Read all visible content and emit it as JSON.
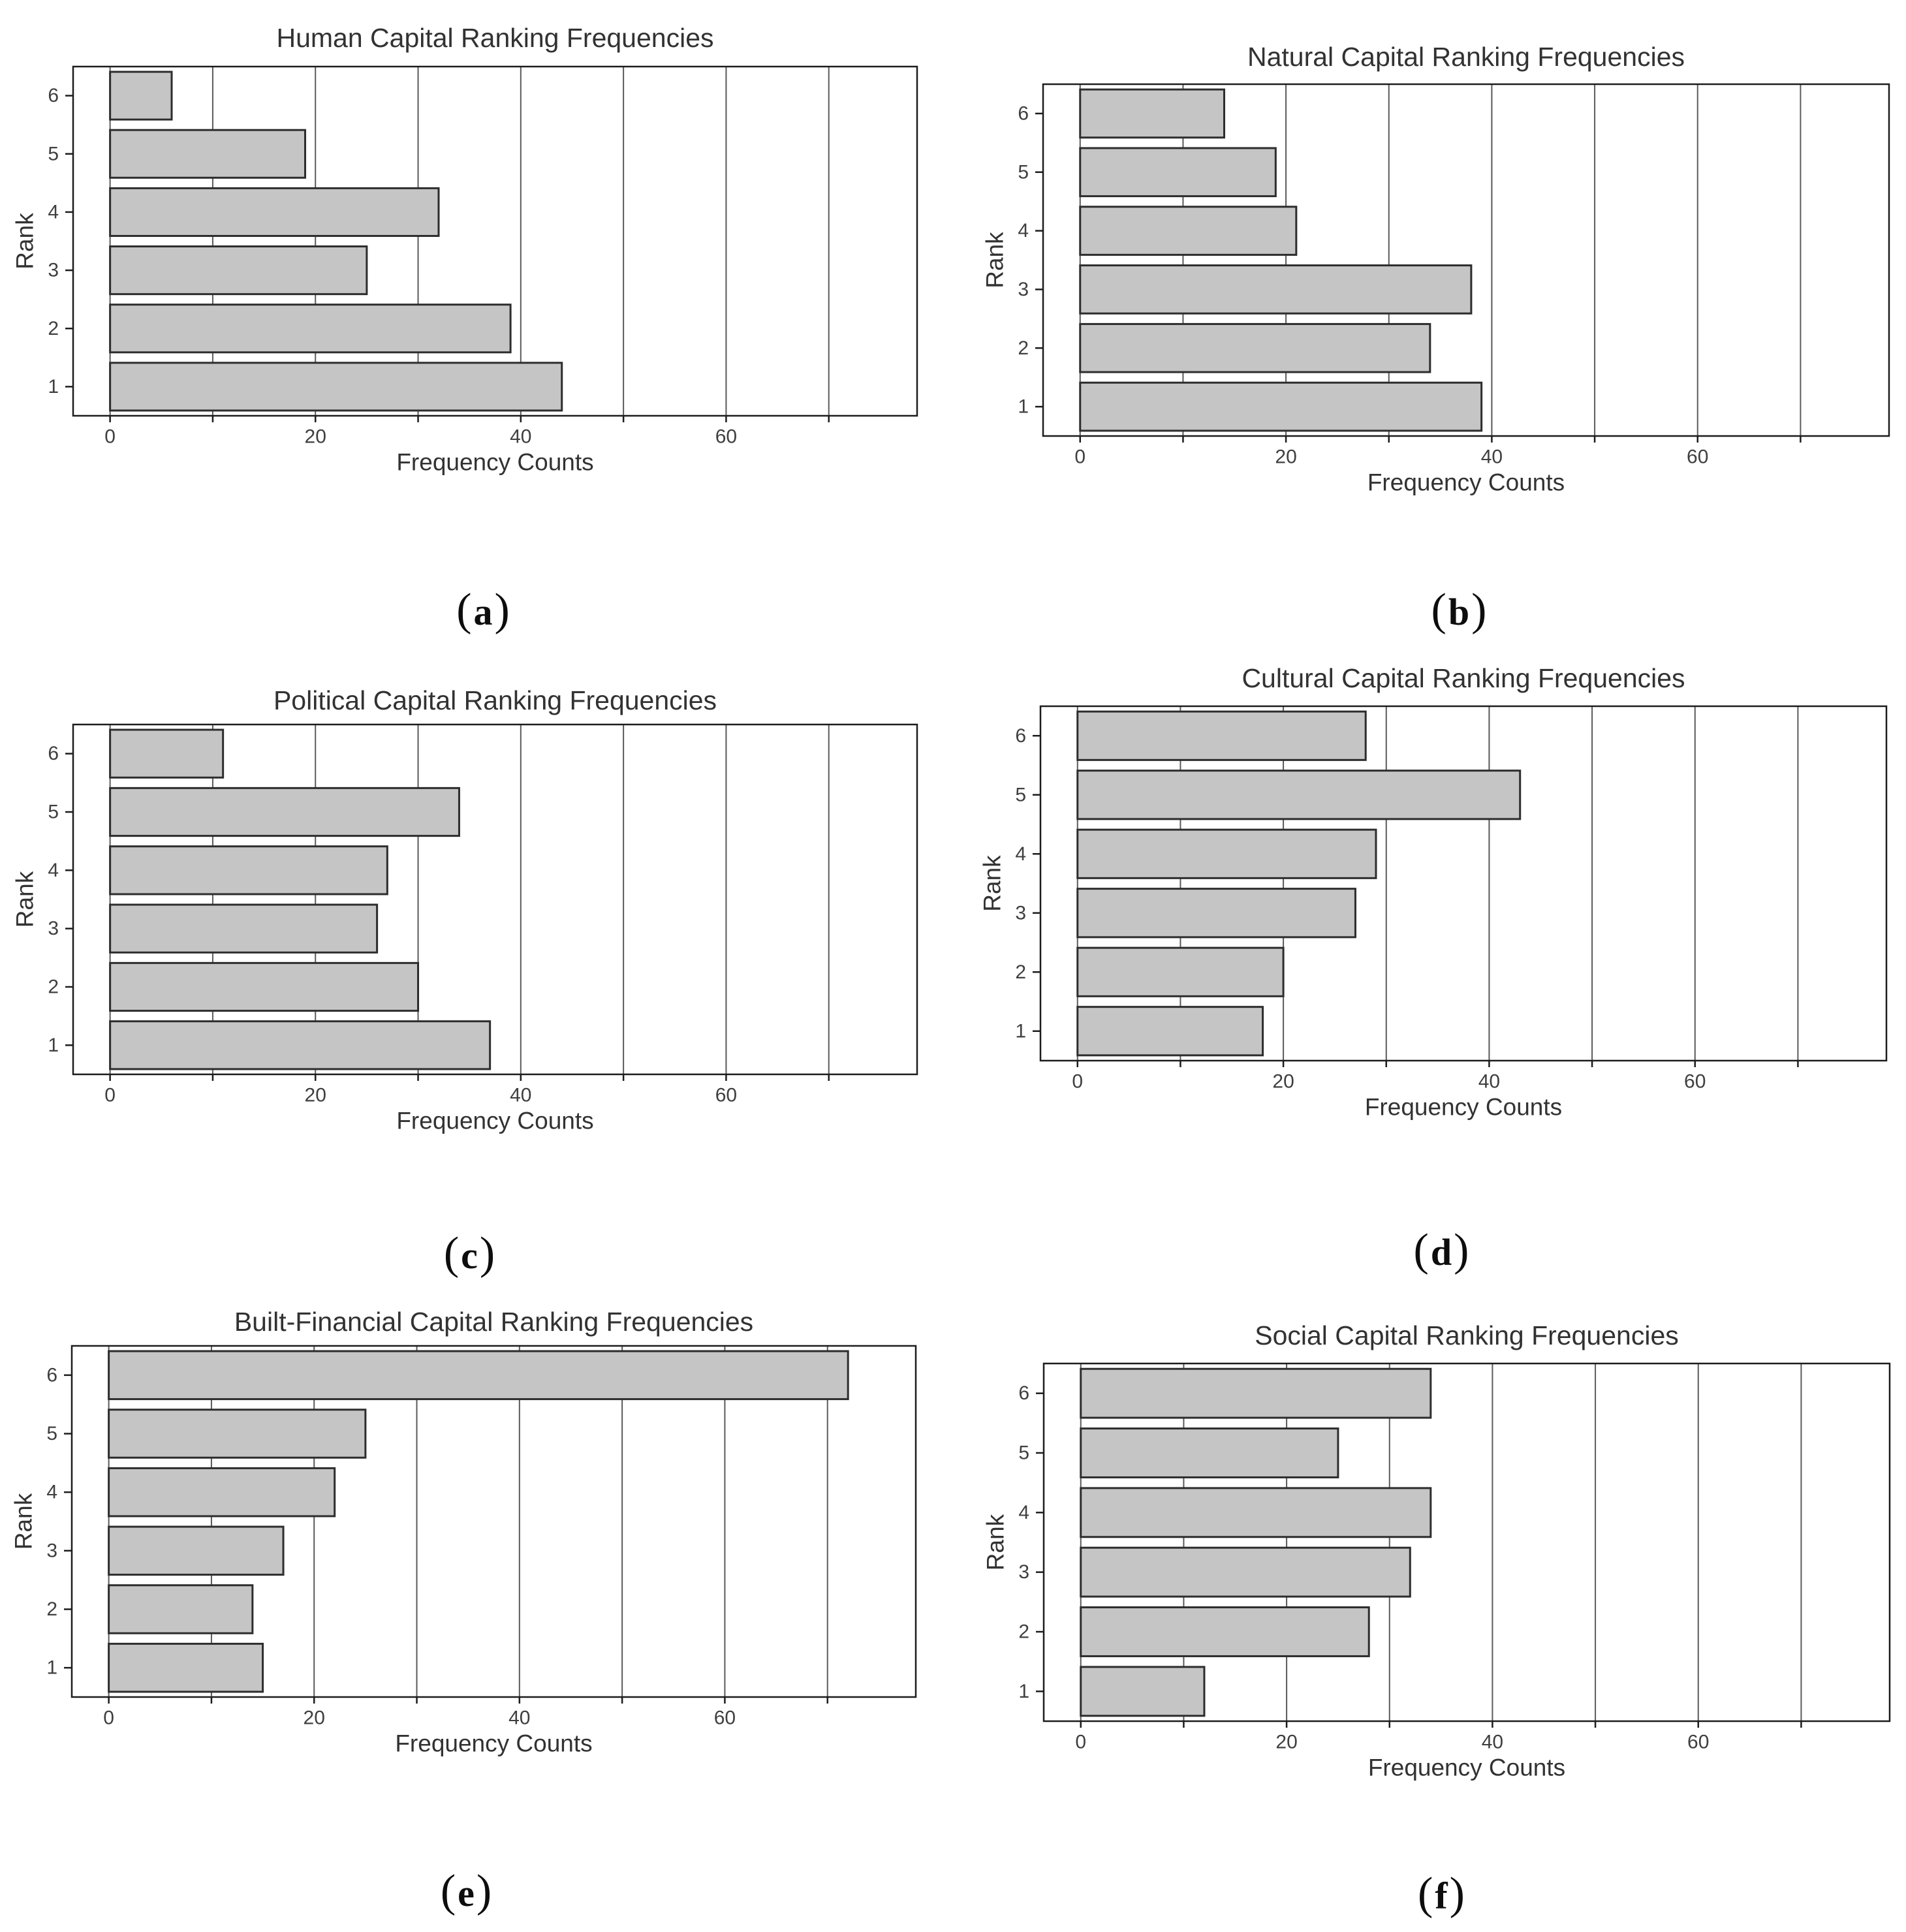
{
  "figure": {
    "background": "#ffffff",
    "labels": [
      {
        "prefix": "(",
        "letter": "a",
        "suffix": ")"
      },
      {
        "prefix": "(",
        "letter": "b",
        "suffix": ")"
      },
      {
        "prefix": "(",
        "letter": "c",
        "suffix": ")"
      },
      {
        "prefix": "(",
        "letter": "d",
        "suffix": ")"
      },
      {
        "prefix": "(",
        "letter": "e",
        "suffix": ")"
      },
      {
        "prefix": "(",
        "letter": "f",
        "suffix": ")"
      }
    ]
  },
  "style": {
    "bar_fill": "#c5c5c5",
    "bar_stroke": "#2d2d2d",
    "grid_color": "#5a5a5a",
    "panel_border": "#1c1c1c",
    "text_color": "#323232",
    "tick_text_color": "#3f3f3f"
  },
  "chart_data": [
    {
      "id": "a",
      "type": "bar",
      "orientation": "horizontal",
      "title": "Human Capital Ranking Frequencies",
      "xlabel": "Frequency Counts",
      "ylabel": "Rank",
      "categories": [
        "1",
        "2",
        "3",
        "4",
        "5",
        "6"
      ],
      "values": [
        44,
        39,
        25,
        32,
        19,
        6
      ],
      "x_ticks": [
        0,
        20,
        40,
        60
      ],
      "x_gridlines": [
        0,
        10,
        20,
        30,
        40,
        50,
        60,
        70
      ],
      "xlim": [
        -3.6,
        78.6
      ],
      "grid": true,
      "legend": false
    },
    {
      "id": "b",
      "type": "bar",
      "orientation": "horizontal",
      "title": "Natural Capital Ranking Frequencies",
      "xlabel": "Frequency Counts",
      "ylabel": "Rank",
      "categories": [
        "1",
        "2",
        "3",
        "4",
        "5",
        "6"
      ],
      "values": [
        39,
        34,
        38,
        21,
        19,
        14
      ],
      "x_ticks": [
        0,
        20,
        40,
        60
      ],
      "x_gridlines": [
        0,
        10,
        20,
        30,
        40,
        50,
        60,
        70
      ],
      "xlim": [
        -3.6,
        78.6
      ],
      "grid": true,
      "legend": false
    },
    {
      "id": "c",
      "type": "bar",
      "orientation": "horizontal",
      "title": "Political Capital Ranking Frequencies",
      "xlabel": "Frequency Counts",
      "ylabel": "Rank",
      "categories": [
        "1",
        "2",
        "3",
        "4",
        "5",
        "6"
      ],
      "values": [
        37,
        30,
        26,
        27,
        34,
        11
      ],
      "x_ticks": [
        0,
        20,
        40,
        60
      ],
      "x_gridlines": [
        0,
        10,
        20,
        30,
        40,
        50,
        60,
        70
      ],
      "xlim": [
        -3.6,
        78.6
      ],
      "grid": true,
      "legend": false
    },
    {
      "id": "d",
      "type": "bar",
      "orientation": "horizontal",
      "title": "Cultural Capital Ranking Frequencies",
      "xlabel": "Frequency Counts",
      "ylabel": "Rank",
      "categories": [
        "1",
        "2",
        "3",
        "4",
        "5",
        "6"
      ],
      "values": [
        18,
        20,
        27,
        29,
        43,
        28
      ],
      "x_ticks": [
        0,
        20,
        40,
        60
      ],
      "x_gridlines": [
        0,
        10,
        20,
        30,
        40,
        50,
        60,
        70
      ],
      "xlim": [
        -3.6,
        78.6
      ],
      "grid": true,
      "legend": false
    },
    {
      "id": "e",
      "type": "bar",
      "orientation": "horizontal",
      "title": "Built-Financial Capital Ranking Frequencies",
      "xlabel": "Frequency Counts",
      "ylabel": "Rank",
      "categories": [
        "1",
        "2",
        "3",
        "4",
        "5",
        "6"
      ],
      "values": [
        15,
        14,
        17,
        22,
        25,
        72
      ],
      "x_ticks": [
        0,
        20,
        40,
        60
      ],
      "x_gridlines": [
        0,
        10,
        20,
        30,
        40,
        50,
        60,
        70
      ],
      "xlim": [
        -3.6,
        78.6
      ],
      "grid": true,
      "legend": false
    },
    {
      "id": "f",
      "type": "bar",
      "orientation": "horizontal",
      "title": "Social Capital Ranking Frequencies",
      "xlabel": "Frequency Counts",
      "ylabel": "Rank",
      "categories": [
        "1",
        "2",
        "3",
        "4",
        "5",
        "6"
      ],
      "values": [
        12,
        28,
        32,
        34,
        25,
        34
      ],
      "x_ticks": [
        0,
        20,
        40,
        60
      ],
      "x_gridlines": [
        0,
        10,
        20,
        30,
        40,
        50,
        60,
        70
      ],
      "xlim": [
        -3.6,
        78.6
      ],
      "grid": true,
      "legend": false
    }
  ]
}
